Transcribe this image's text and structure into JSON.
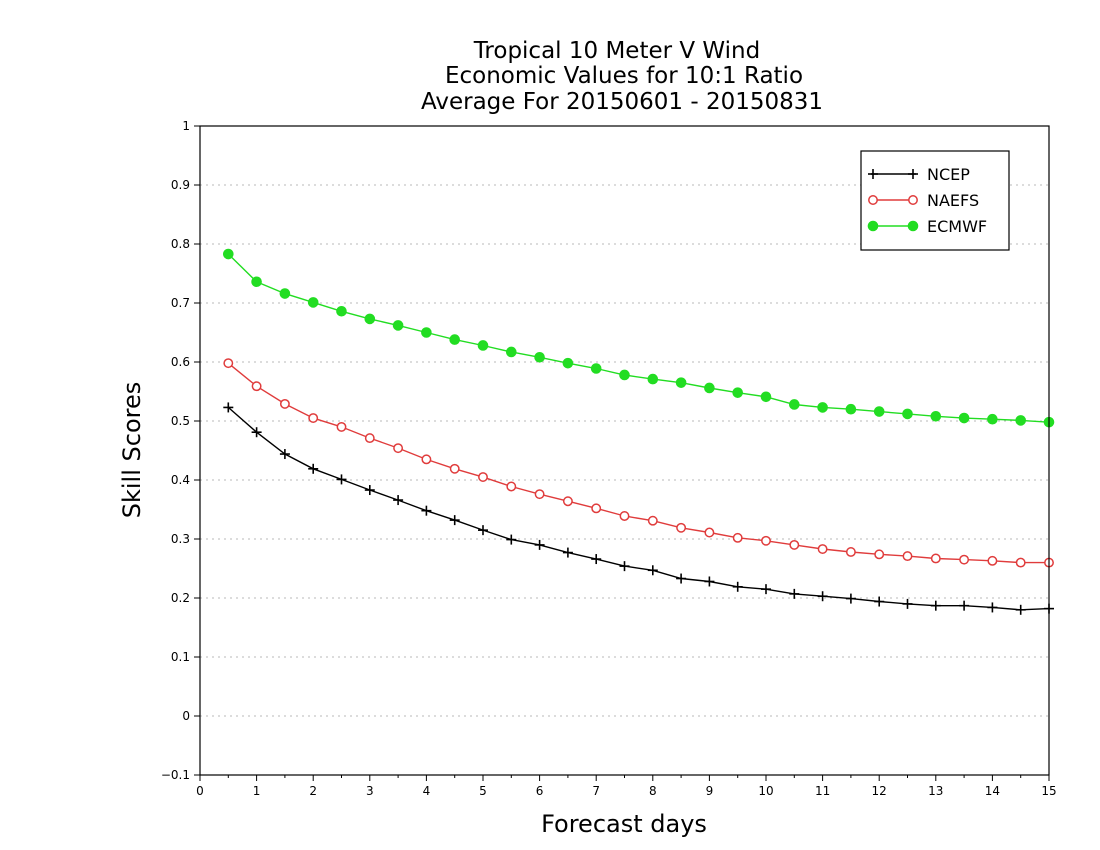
{
  "chart_data": {
    "type": "line",
    "title_lines": [
      "Tropical 10 Meter V Wind",
      "Economic Values for 10:1 Ratio",
      "Average For 20150601 - 20150831"
    ],
    "xlabel": "Forecast days",
    "ylabel": "Skill Scores",
    "xlim": [
      0,
      15
    ],
    "ylim": [
      -0.1,
      1
    ],
    "x_ticks": [
      0,
      1,
      2,
      3,
      4,
      5,
      6,
      7,
      8,
      9,
      10,
      11,
      12,
      13,
      14,
      15
    ],
    "y_ticks": [
      -0.1,
      0,
      0.1,
      0.2,
      0.3,
      0.4,
      0.5,
      0.6,
      0.7,
      0.8,
      0.9,
      1
    ],
    "x_tick_labels": [
      "0",
      "1",
      "2",
      "3",
      "4",
      "5",
      "6",
      "7",
      "8",
      "9",
      "10",
      "11",
      "12",
      "13",
      "14",
      "15"
    ],
    "y_tick_labels": [
      "−0.1",
      "0",
      "0.1",
      "0.2",
      "0.3",
      "0.4",
      "0.5",
      "0.6",
      "0.7",
      "0.8",
      "0.9",
      "1"
    ],
    "grid": "horizontal dotted",
    "legend_position": "top-right",
    "x": [
      0.5,
      1,
      1.5,
      2,
      2.5,
      3,
      3.5,
      4,
      4.5,
      5,
      5.5,
      6,
      6.5,
      7,
      7.5,
      8,
      8.5,
      9,
      9.5,
      10,
      10.5,
      11,
      11.5,
      12,
      12.5,
      13,
      13.5,
      14,
      14.5,
      15
    ],
    "series": [
      {
        "name": "NCEP",
        "color": "#000000",
        "marker": "plus",
        "values": [
          0.523,
          0.481,
          0.444,
          0.419,
          0.401,
          0.383,
          0.366,
          0.348,
          0.332,
          0.315,
          0.299,
          0.29,
          0.277,
          0.266,
          0.254,
          0.247,
          0.233,
          0.228,
          0.219,
          0.215,
          0.207,
          0.203,
          0.199,
          0.194,
          0.19,
          0.187,
          0.187,
          0.184,
          0.18,
          0.182
        ]
      },
      {
        "name": "NAEFS",
        "color": "#e03c3c",
        "marker": "open-circle",
        "values": [
          0.598,
          0.559,
          0.529,
          0.505,
          0.49,
          0.471,
          0.454,
          0.435,
          0.419,
          0.405,
          0.389,
          0.376,
          0.364,
          0.352,
          0.339,
          0.331,
          0.319,
          0.311,
          0.302,
          0.297,
          0.29,
          0.283,
          0.278,
          0.274,
          0.271,
          0.267,
          0.265,
          0.263,
          0.26,
          0.26
        ]
      },
      {
        "name": "ECMWF",
        "color": "#22dd22",
        "marker": "filled-circle",
        "values": [
          0.783,
          0.736,
          0.716,
          0.701,
          0.686,
          0.673,
          0.662,
          0.65,
          0.638,
          0.628,
          0.617,
          0.608,
          0.598,
          0.589,
          0.578,
          0.571,
          0.565,
          0.556,
          0.548,
          0.541,
          0.528,
          0.523,
          0.52,
          0.516,
          0.512,
          0.508,
          0.505,
          0.503,
          0.501,
          0.498
        ]
      }
    ]
  }
}
